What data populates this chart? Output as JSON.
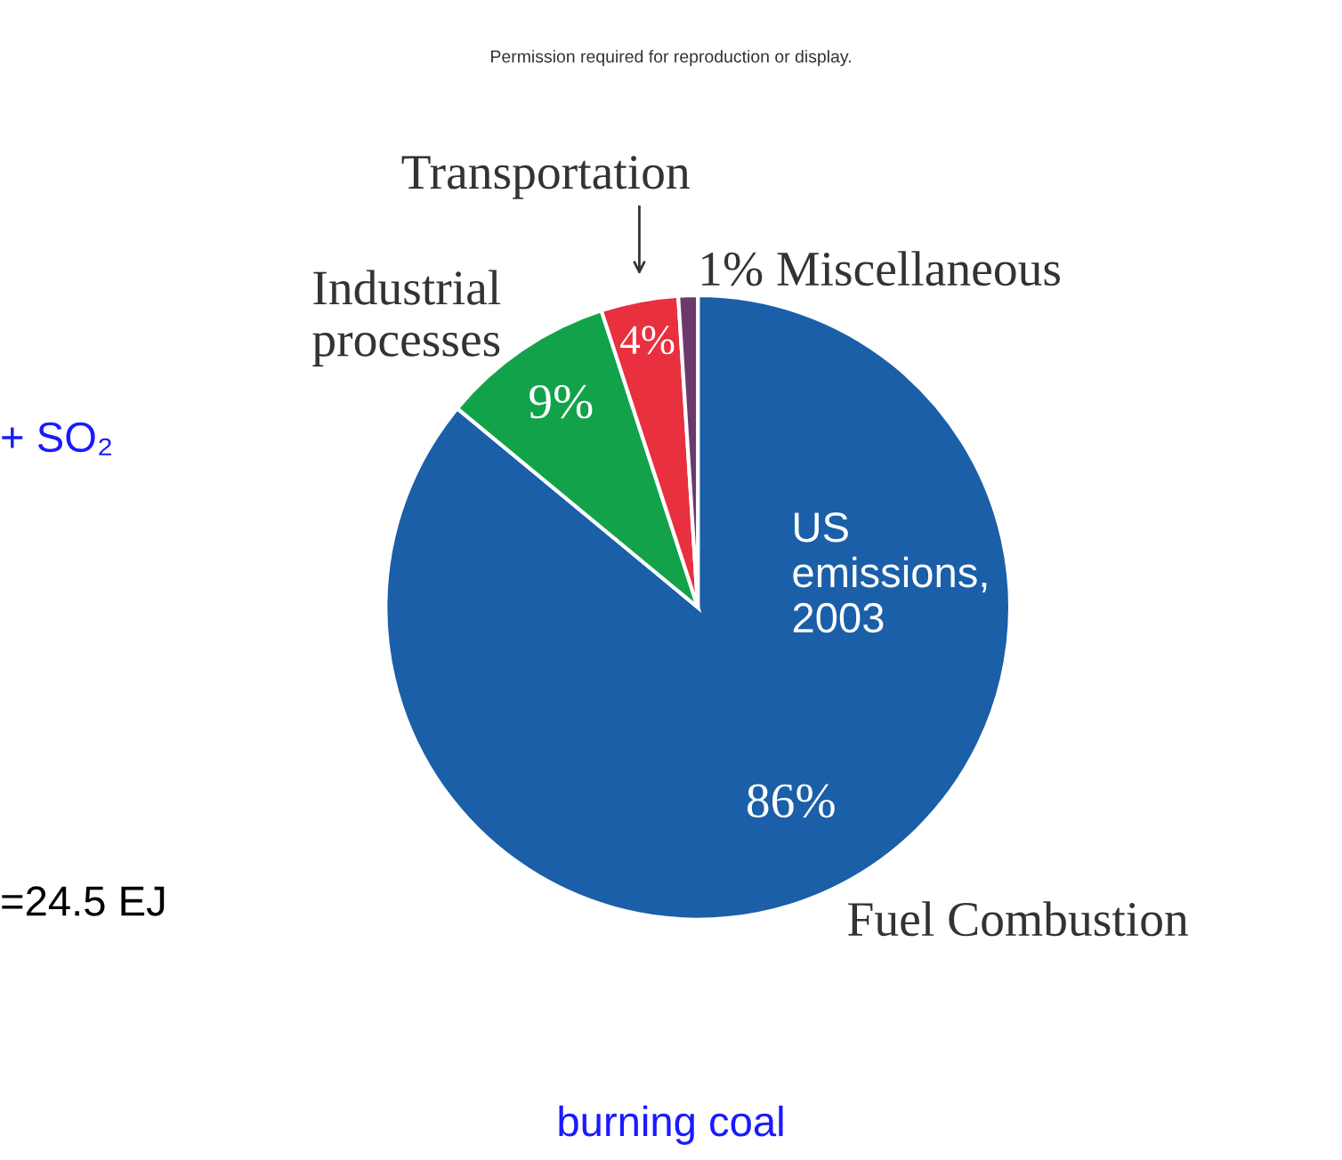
{
  "chart_data": {
    "type": "pie",
    "categories": [
      "Fuel Combustion",
      "Industrial\nprocesses",
      "Transportation",
      "Miscellaneous"
    ],
    "values": [
      86,
      9,
      4,
      1
    ],
    "colors": [
      "#1a5fa8",
      "#12a34a",
      "#e8303f",
      "#6b3a6b"
    ],
    "value_labels": [
      "86%",
      "9%",
      "4%",
      "1%"
    ],
    "legend": false,
    "annotations": [
      "Permission required for reproduction or display.",
      "US\nemissions,\n2003",
      "+ SO₂",
      "=24.5 EJ",
      "burning coal"
    ]
  }
}
